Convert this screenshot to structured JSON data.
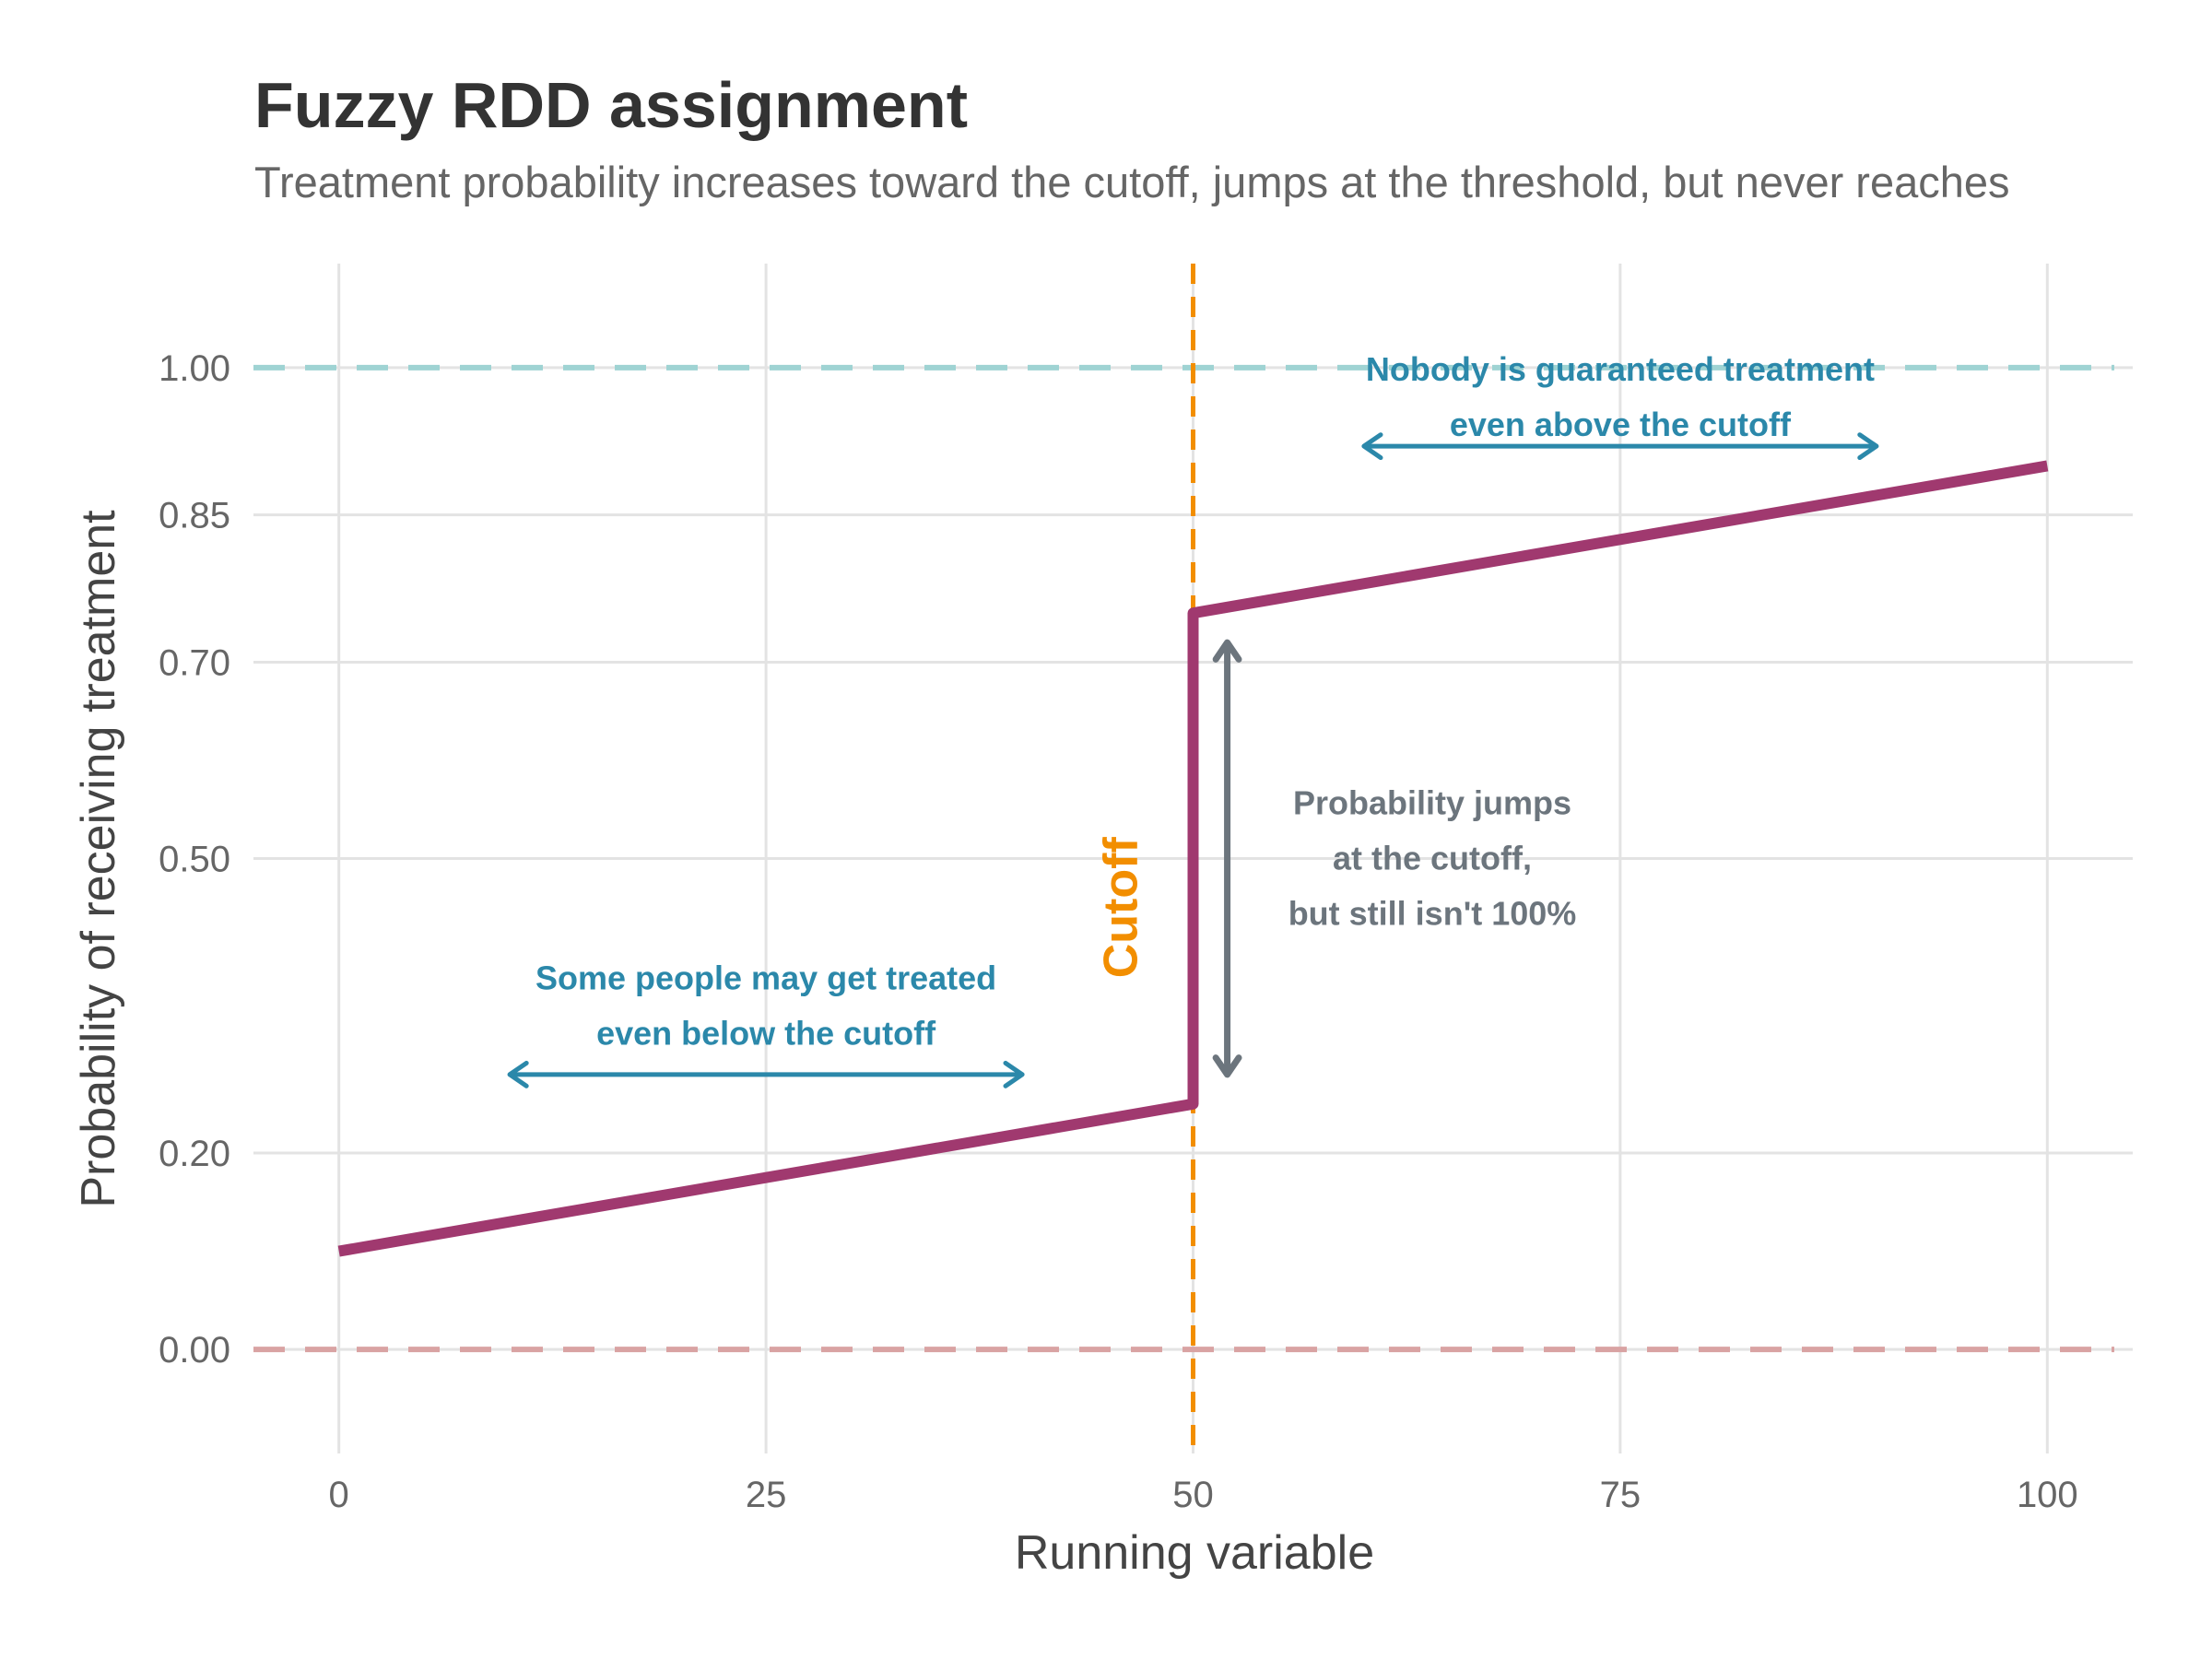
{
  "chart_data": {
    "type": "line",
    "title": "Fuzzy RDD assignment",
    "subtitle": "Treatment probability increases toward the cutoff, jumps at the threshold, but never reaches",
    "xlabel": "Running variable",
    "ylabel": "Probability of receiving treatment",
    "xlim": [
      -5,
      105
    ],
    "ylim": [
      -0.106,
      1.106
    ],
    "grid": true,
    "x_ticks": [
      0,
      25,
      50,
      75,
      100
    ],
    "x_tick_labels": [
      "0",
      "25",
      "50",
      "75",
      "100"
    ],
    "y_ticks": [
      0,
      0.2,
      0.5,
      0.7,
      0.85,
      1.0
    ],
    "y_tick_labels": [
      "0.00",
      "0.20",
      "0.50",
      "0.70",
      "0.85",
      "1.00"
    ],
    "series": [
      {
        "name": "Treatment probability",
        "color": "#A0396F",
        "points": [
          [
            0,
            0.1
          ],
          [
            50,
            0.25
          ],
          [
            50,
            0.75
          ],
          [
            100,
            0.9
          ]
        ]
      }
    ],
    "reference_lines": [
      {
        "axis": "y",
        "value": 1.0,
        "color": "#9FD3D3",
        "style": "dashed"
      },
      {
        "axis": "y",
        "value": 0.0,
        "color": "#D9A3A3",
        "style": "dashed"
      },
      {
        "axis": "x",
        "value": 50,
        "color": "#F28E00",
        "style": "dashed",
        "label": "Cutoff"
      }
    ],
    "annotations": [
      {
        "lines": [
          "Nobody is guaranteed treatment",
          "even above the cutoff"
        ],
        "x": 75,
        "y": 0.97,
        "color": "#2B88AA"
      },
      {
        "lines": [
          "Some people may get treated",
          "even below the cutoff"
        ],
        "x": 25,
        "y": 0.35,
        "color": "#2B88AA"
      },
      {
        "lines": [
          "Probability jumps",
          "at the cutoff,",
          "but still isn't 100%"
        ],
        "x": 64,
        "y": 0.5,
        "color": "#6C757D"
      }
    ],
    "arrows": [
      {
        "x1": 60,
        "y1": 0.92,
        "x2": 90,
        "y2": 0.92,
        "color": "#2B88AA"
      },
      {
        "x1": 10,
        "y1": 0.28,
        "x2": 40,
        "y2": 0.28,
        "color": "#2B88AA"
      },
      {
        "x1": 52,
        "y1": 0.72,
        "x2": 52,
        "y2": 0.28,
        "color": "#6C757D"
      }
    ]
  }
}
